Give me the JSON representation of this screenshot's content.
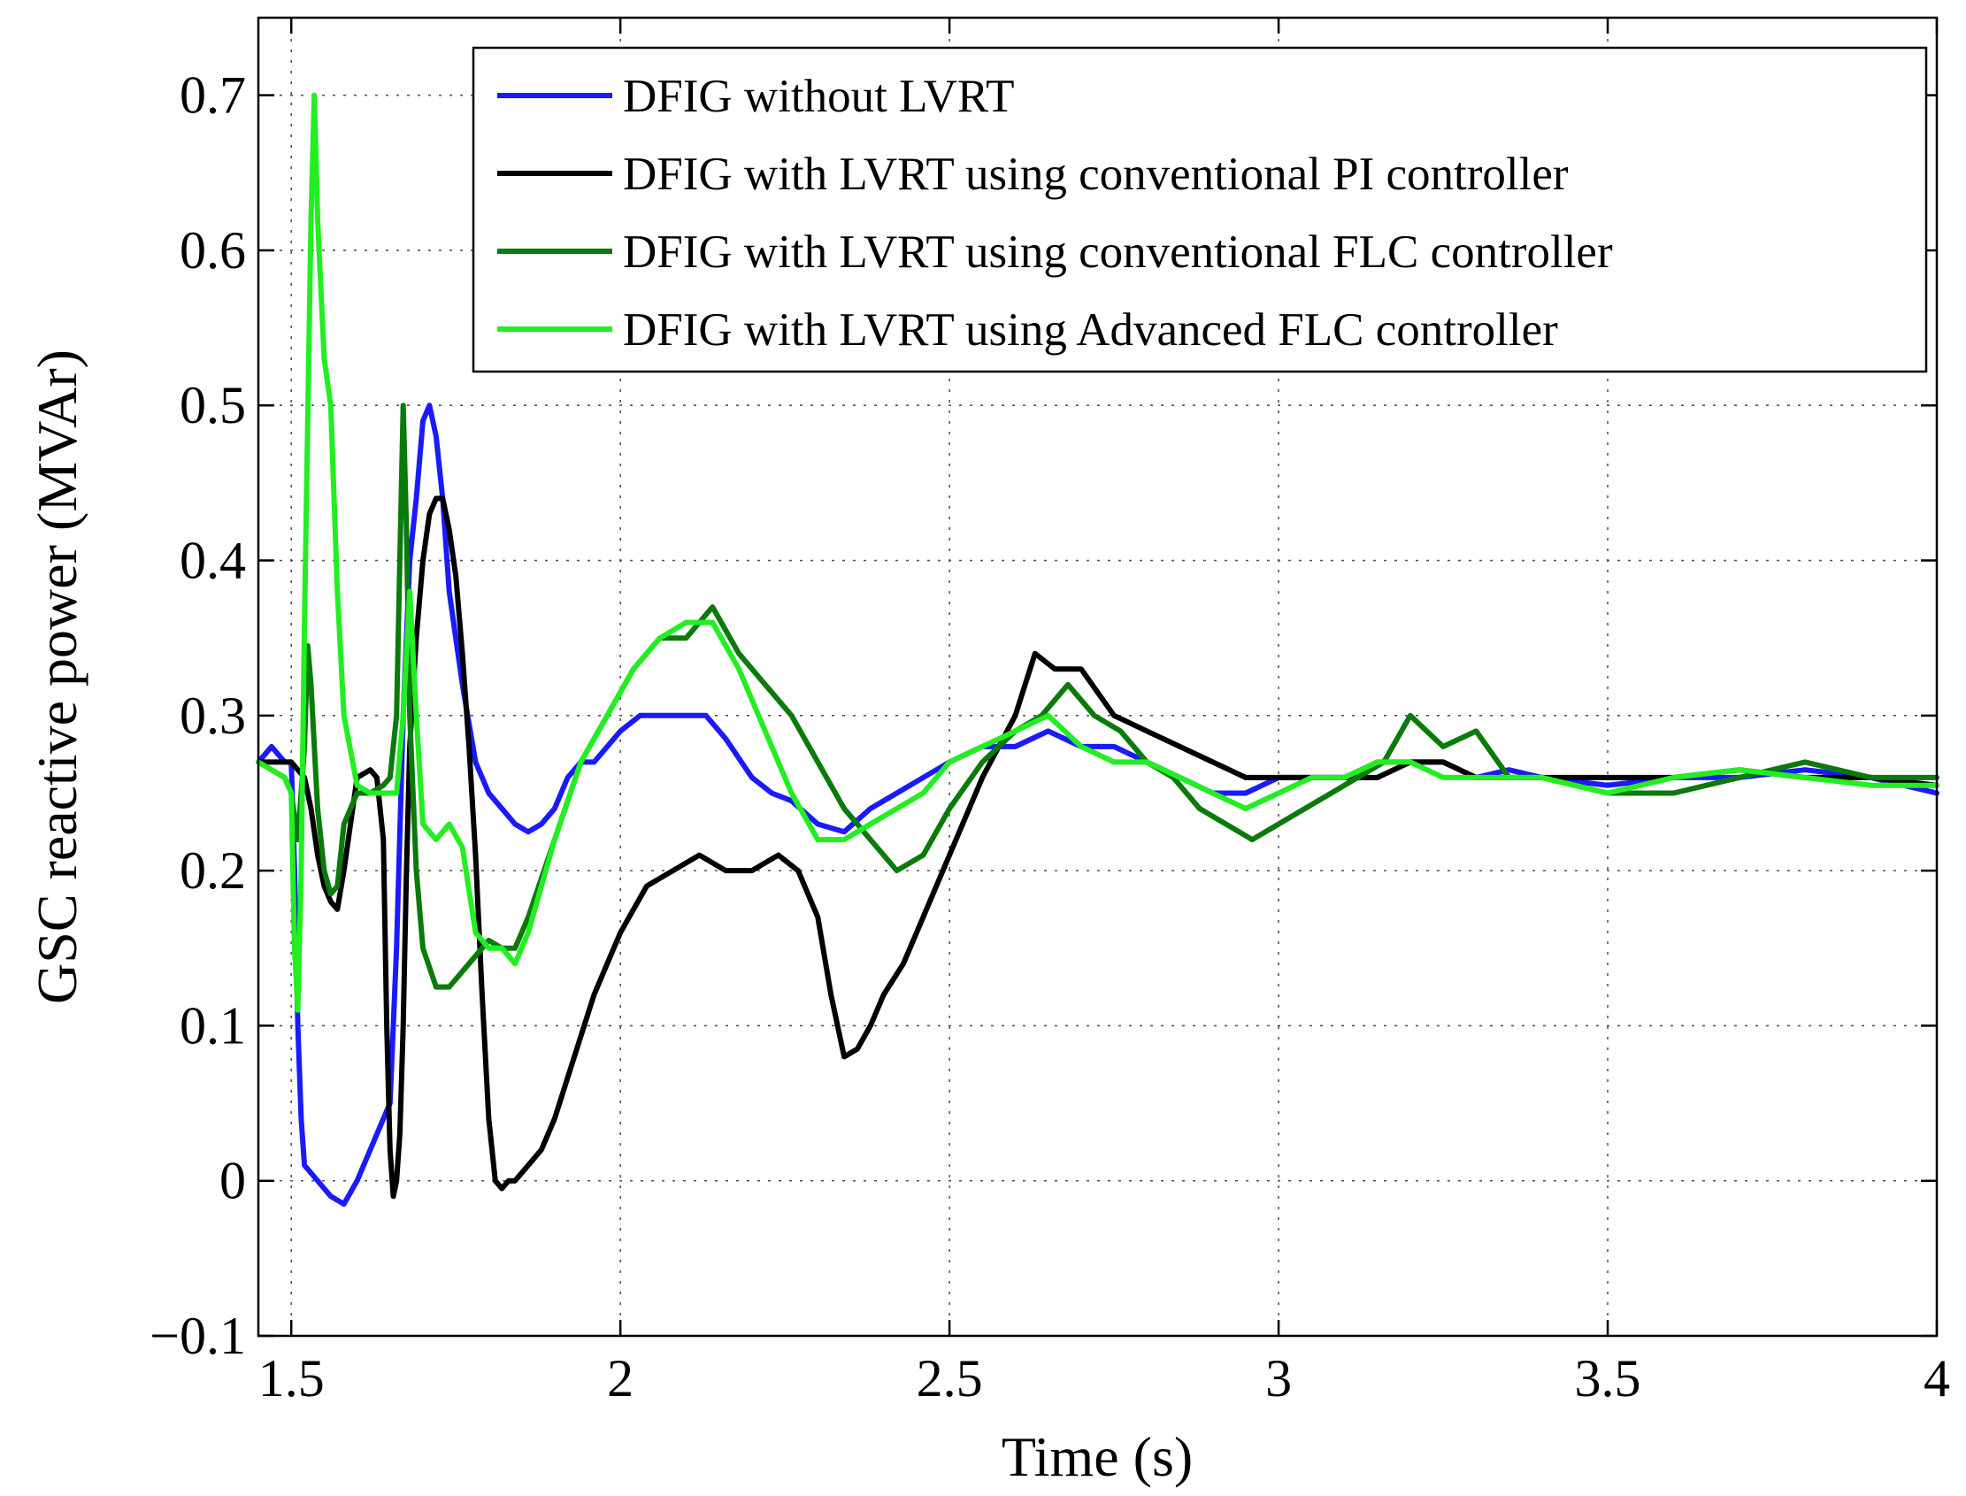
{
  "chart_data": {
    "type": "line",
    "xlabel": "Time (s)",
    "ylabel": "GSC reactive power (MVAr)",
    "xlim": [
      1.45,
      4.0
    ],
    "ylim": [
      -0.1,
      0.75
    ],
    "xticks": [
      1.5,
      2,
      2.5,
      3,
      3.5,
      4
    ],
    "xtick_labels": [
      "1.5",
      "2",
      "2.5",
      "3",
      "3.5",
      "4"
    ],
    "yticks": [
      -0.1,
      0,
      0.1,
      0.2,
      0.3,
      0.4,
      0.5,
      0.6,
      0.7
    ],
    "ytick_labels": [
      "−0.1",
      "0",
      "0.1",
      "0.2",
      "0.3",
      "0.4",
      "0.5",
      "0.6",
      "0.7"
    ],
    "grid": true,
    "legend_position": "top-right",
    "series": [
      {
        "name": "DFIG without LVRT",
        "color": "#1a1aff",
        "x": [
          1.45,
          1.47,
          1.49,
          1.5,
          1.505,
          1.51,
          1.515,
          1.52,
          1.54,
          1.56,
          1.58,
          1.6,
          1.62,
          1.64,
          1.65,
          1.66,
          1.67,
          1.68,
          1.69,
          1.7,
          1.71,
          1.72,
          1.73,
          1.74,
          1.76,
          1.78,
          1.8,
          1.82,
          1.84,
          1.86,
          1.88,
          1.9,
          1.92,
          1.94,
          1.96,
          1.98,
          2.0,
          2.03,
          2.06,
          2.1,
          2.13,
          2.16,
          2.2,
          2.23,
          2.26,
          2.3,
          2.34,
          2.38,
          2.42,
          2.46,
          2.5,
          2.55,
          2.6,
          2.65,
          2.7,
          2.75,
          2.8,
          2.85,
          2.9,
          2.95,
          3.0,
          3.05,
          3.1,
          3.15,
          3.2,
          3.25,
          3.3,
          3.35,
          3.4,
          3.5,
          3.6,
          3.7,
          3.8,
          3.9,
          4.0
        ],
        "y": [
          0.27,
          0.28,
          0.27,
          0.27,
          0.2,
          0.1,
          0.04,
          0.01,
          0.0,
          -0.01,
          -0.015,
          0.0,
          0.02,
          0.04,
          0.05,
          0.15,
          0.3,
          0.4,
          0.44,
          0.49,
          0.5,
          0.48,
          0.44,
          0.38,
          0.32,
          0.27,
          0.25,
          0.24,
          0.23,
          0.225,
          0.23,
          0.24,
          0.26,
          0.27,
          0.27,
          0.28,
          0.29,
          0.3,
          0.3,
          0.3,
          0.3,
          0.285,
          0.26,
          0.25,
          0.245,
          0.23,
          0.225,
          0.24,
          0.25,
          0.26,
          0.27,
          0.28,
          0.28,
          0.29,
          0.28,
          0.28,
          0.27,
          0.26,
          0.25,
          0.25,
          0.26,
          0.26,
          0.26,
          0.27,
          0.27,
          0.27,
          0.26,
          0.265,
          0.26,
          0.255,
          0.26,
          0.26,
          0.265,
          0.26,
          0.25
        ]
      },
      {
        "name": "DFIG with LVRT using conventional PI controller",
        "color": "#000000",
        "x": [
          1.45,
          1.47,
          1.49,
          1.5,
          1.51,
          1.52,
          1.53,
          1.54,
          1.55,
          1.56,
          1.57,
          1.58,
          1.6,
          1.62,
          1.63,
          1.64,
          1.645,
          1.65,
          1.655,
          1.66,
          1.665,
          1.67,
          1.675,
          1.68,
          1.69,
          1.7,
          1.71,
          1.72,
          1.73,
          1.74,
          1.75,
          1.76,
          1.77,
          1.78,
          1.79,
          1.8,
          1.81,
          1.82,
          1.83,
          1.84,
          1.86,
          1.88,
          1.9,
          1.93,
          1.96,
          2.0,
          2.04,
          2.08,
          2.12,
          2.16,
          2.2,
          2.24,
          2.27,
          2.3,
          2.32,
          2.34,
          2.36,
          2.38,
          2.4,
          2.43,
          2.46,
          2.5,
          2.55,
          2.6,
          2.63,
          2.66,
          2.7,
          2.75,
          2.8,
          2.85,
          2.9,
          2.95,
          3.0,
          3.05,
          3.1,
          3.15,
          3.2,
          3.25,
          3.3,
          3.4,
          3.5,
          3.6,
          3.7,
          3.8,
          3.9,
          4.0
        ],
        "y": [
          0.27,
          0.27,
          0.27,
          0.27,
          0.265,
          0.26,
          0.24,
          0.21,
          0.19,
          0.18,
          0.175,
          0.2,
          0.26,
          0.265,
          0.26,
          0.22,
          0.1,
          0.02,
          -0.01,
          0.0,
          0.03,
          0.1,
          0.2,
          0.28,
          0.35,
          0.4,
          0.43,
          0.44,
          0.44,
          0.42,
          0.39,
          0.34,
          0.28,
          0.21,
          0.12,
          0.04,
          0.0,
          -0.005,
          0.0,
          0.0,
          0.01,
          0.02,
          0.04,
          0.08,
          0.12,
          0.16,
          0.19,
          0.2,
          0.21,
          0.2,
          0.2,
          0.21,
          0.2,
          0.17,
          0.12,
          0.08,
          0.085,
          0.1,
          0.12,
          0.14,
          0.17,
          0.21,
          0.26,
          0.3,
          0.34,
          0.33,
          0.33,
          0.3,
          0.29,
          0.28,
          0.27,
          0.26,
          0.26,
          0.26,
          0.26,
          0.26,
          0.27,
          0.27,
          0.26,
          0.26,
          0.26,
          0.26,
          0.265,
          0.26,
          0.26,
          0.255
        ]
      },
      {
        "name": "DFIG with LVRT using conventional FLC controller",
        "color": "#0a7a0a",
        "x": [
          1.45,
          1.47,
          1.49,
          1.5,
          1.51,
          1.52,
          1.525,
          1.53,
          1.54,
          1.55,
          1.56,
          1.57,
          1.58,
          1.6,
          1.62,
          1.64,
          1.65,
          1.66,
          1.665,
          1.67,
          1.675,
          1.68,
          1.69,
          1.7,
          1.72,
          1.74,
          1.76,
          1.78,
          1.8,
          1.82,
          1.84,
          1.86,
          1.9,
          1.94,
          1.98,
          2.02,
          2.06,
          2.1,
          2.14,
          2.18,
          2.22,
          2.26,
          2.3,
          2.34,
          2.38,
          2.42,
          2.46,
          2.5,
          2.55,
          2.6,
          2.64,
          2.68,
          2.72,
          2.76,
          2.8,
          2.84,
          2.88,
          2.92,
          2.96,
          3.0,
          3.04,
          3.08,
          3.12,
          3.16,
          3.2,
          3.25,
          3.3,
          3.35,
          3.4,
          3.5,
          3.6,
          3.7,
          3.8,
          3.9,
          4.0
        ],
        "y": [
          0.27,
          0.265,
          0.26,
          0.25,
          0.22,
          0.28,
          0.345,
          0.32,
          0.24,
          0.2,
          0.185,
          0.19,
          0.23,
          0.25,
          0.25,
          0.255,
          0.26,
          0.3,
          0.4,
          0.5,
          0.42,
          0.3,
          0.2,
          0.15,
          0.125,
          0.125,
          0.135,
          0.145,
          0.155,
          0.15,
          0.15,
          0.17,
          0.22,
          0.27,
          0.3,
          0.33,
          0.35,
          0.35,
          0.37,
          0.34,
          0.32,
          0.3,
          0.27,
          0.24,
          0.22,
          0.2,
          0.21,
          0.24,
          0.27,
          0.29,
          0.3,
          0.32,
          0.3,
          0.29,
          0.27,
          0.26,
          0.24,
          0.23,
          0.22,
          0.23,
          0.24,
          0.25,
          0.26,
          0.27,
          0.3,
          0.28,
          0.29,
          0.26,
          0.26,
          0.25,
          0.25,
          0.26,
          0.27,
          0.26,
          0.26
        ]
      },
      {
        "name": "DFIG with LVRT using Advanced FLC controller",
        "color": "#22ee22",
        "x": [
          1.45,
          1.47,
          1.49,
          1.5,
          1.505,
          1.51,
          1.515,
          1.52,
          1.53,
          1.535,
          1.54,
          1.55,
          1.56,
          1.57,
          1.58,
          1.6,
          1.62,
          1.64,
          1.66,
          1.67,
          1.68,
          1.69,
          1.7,
          1.72,
          1.74,
          1.76,
          1.78,
          1.8,
          1.82,
          1.84,
          1.86,
          1.9,
          1.94,
          1.98,
          2.02,
          2.06,
          2.1,
          2.14,
          2.18,
          2.22,
          2.26,
          2.3,
          2.34,
          2.38,
          2.42,
          2.46,
          2.5,
          2.55,
          2.6,
          2.65,
          2.7,
          2.75,
          2.8,
          2.85,
          2.9,
          2.95,
          3.0,
          3.05,
          3.1,
          3.15,
          3.2,
          3.25,
          3.3,
          3.4,
          3.5,
          3.6,
          3.7,
          3.8,
          3.9,
          4.0
        ],
        "y": [
          0.27,
          0.265,
          0.26,
          0.25,
          0.15,
          0.11,
          0.2,
          0.36,
          0.62,
          0.7,
          0.62,
          0.53,
          0.5,
          0.38,
          0.3,
          0.255,
          0.25,
          0.25,
          0.25,
          0.3,
          0.38,
          0.3,
          0.23,
          0.22,
          0.23,
          0.215,
          0.16,
          0.15,
          0.15,
          0.14,
          0.16,
          0.22,
          0.27,
          0.3,
          0.33,
          0.35,
          0.36,
          0.36,
          0.33,
          0.29,
          0.25,
          0.22,
          0.22,
          0.23,
          0.24,
          0.25,
          0.27,
          0.28,
          0.29,
          0.3,
          0.28,
          0.27,
          0.27,
          0.26,
          0.25,
          0.24,
          0.25,
          0.26,
          0.26,
          0.27,
          0.27,
          0.26,
          0.26,
          0.26,
          0.25,
          0.26,
          0.265,
          0.26,
          0.255,
          0.255
        ]
      }
    ]
  }
}
